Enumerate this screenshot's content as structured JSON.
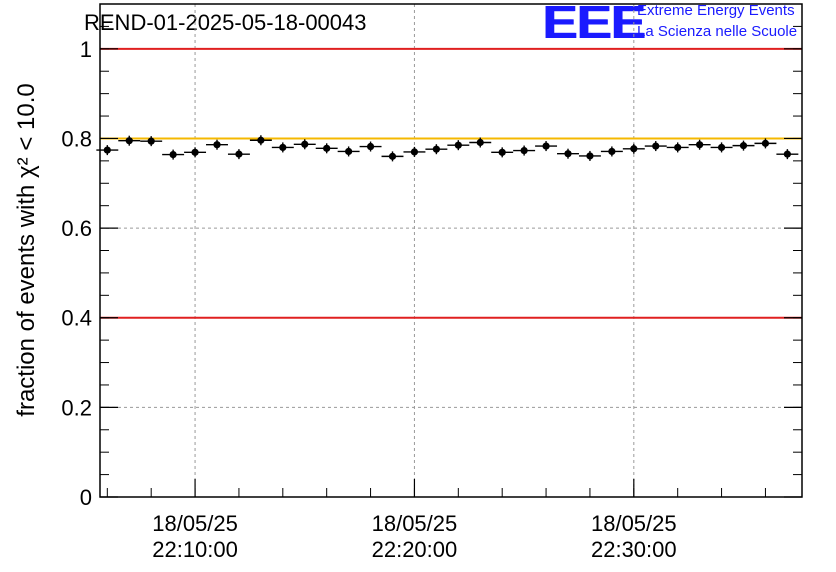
{
  "header": {
    "run_title": "REND-01-2025-05-18-00043",
    "logo": {
      "mark": "EEE",
      "line1": "Extreme Energy Events",
      "line2": "La Scienza nelle Scuole",
      "color": "#1a1aff"
    }
  },
  "chart_data": {
    "type": "scatter",
    "ylabel": "fraction of events with χ² < 10.0",
    "ylim": [
      0,
      1.1
    ],
    "yticks": [
      0,
      0.2,
      0.4,
      0.6,
      0.8,
      1
    ],
    "ytick_labels": [
      "0",
      "0.2",
      "0.4",
      "0.6",
      "0.8",
      "1"
    ],
    "xlim": [
      "18/05/25 22:05:40",
      "18/05/25 22:37:40"
    ],
    "xticks": [
      {
        "date": "18/05/25",
        "time": "22:10:00"
      },
      {
        "date": "18/05/25",
        "time": "22:20:00"
      },
      {
        "date": "18/05/25",
        "time": "22:30:00"
      }
    ],
    "grid": true,
    "reference_lines": [
      {
        "y": 1.0,
        "color": "#e02020"
      },
      {
        "y": 0.8,
        "color": "#f5b800"
      },
      {
        "y": 0.4,
        "color": "#e02020"
      }
    ],
    "marker_color": "#000000",
    "points": [
      {
        "x": "22:06:00",
        "y": 0.774
      },
      {
        "x": "22:07:00",
        "y": 0.795
      },
      {
        "x": "22:08:00",
        "y": 0.794
      },
      {
        "x": "22:09:00",
        "y": 0.764
      },
      {
        "x": "22:10:00",
        "y": 0.769
      },
      {
        "x": "22:11:00",
        "y": 0.786
      },
      {
        "x": "22:12:00",
        "y": 0.765
      },
      {
        "x": "22:13:00",
        "y": 0.796
      },
      {
        "x": "22:14:00",
        "y": 0.78
      },
      {
        "x": "22:15:00",
        "y": 0.787
      },
      {
        "x": "22:16:00",
        "y": 0.778
      },
      {
        "x": "22:17:00",
        "y": 0.771
      },
      {
        "x": "22:18:00",
        "y": 0.782
      },
      {
        "x": "22:19:00",
        "y": 0.76
      },
      {
        "x": "22:20:00",
        "y": 0.77
      },
      {
        "x": "22:21:00",
        "y": 0.776
      },
      {
        "x": "22:22:00",
        "y": 0.785
      },
      {
        "x": "22:23:00",
        "y": 0.791
      },
      {
        "x": "22:24:00",
        "y": 0.769
      },
      {
        "x": "22:25:00",
        "y": 0.773
      },
      {
        "x": "22:26:00",
        "y": 0.783
      },
      {
        "x": "22:27:00",
        "y": 0.766
      },
      {
        "x": "22:28:00",
        "y": 0.761
      },
      {
        "x": "22:29:00",
        "y": 0.771
      },
      {
        "x": "22:30:00",
        "y": 0.777
      },
      {
        "x": "22:31:00",
        "y": 0.783
      },
      {
        "x": "22:32:00",
        "y": 0.78
      },
      {
        "x": "22:33:00",
        "y": 0.786
      },
      {
        "x": "22:34:00",
        "y": 0.78
      },
      {
        "x": "22:35:00",
        "y": 0.784
      },
      {
        "x": "22:36:00",
        "y": 0.789
      },
      {
        "x": "22:37:00",
        "y": 0.765
      }
    ]
  }
}
